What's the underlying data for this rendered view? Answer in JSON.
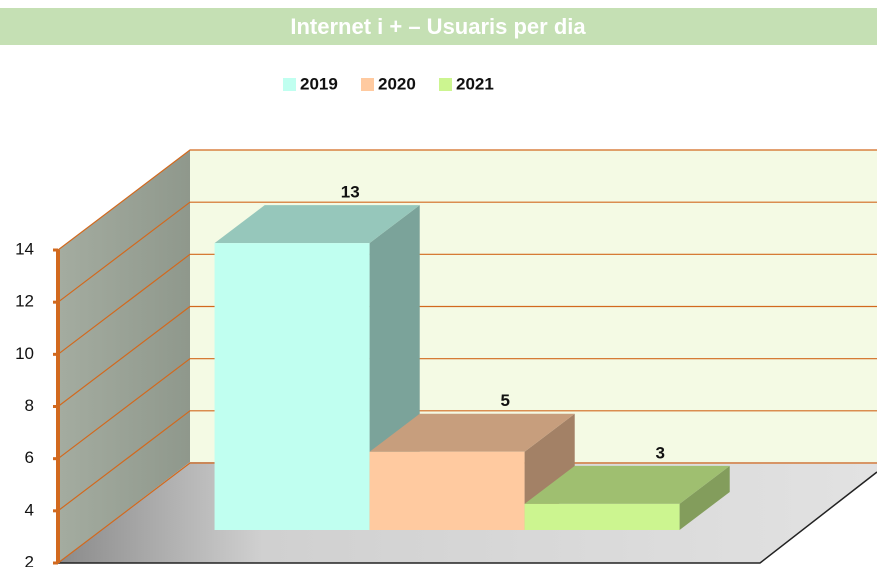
{
  "chart_data": {
    "type": "bar",
    "title": "Internet i + – Usuaris per dia",
    "series": [
      {
        "name": "2019",
        "color": "#c0fff0",
        "values": [
          13
        ]
      },
      {
        "name": "2020",
        "color": "#ffcaa0",
        "values": [
          5
        ]
      },
      {
        "name": "2021",
        "color": "#ccf590",
        "values": [
          3
        ]
      }
    ],
    "ylim": [
      2,
      14
    ],
    "yticks": [
      2,
      4,
      6,
      8,
      10,
      12,
      14
    ],
    "grid": true,
    "legend": "top"
  }
}
